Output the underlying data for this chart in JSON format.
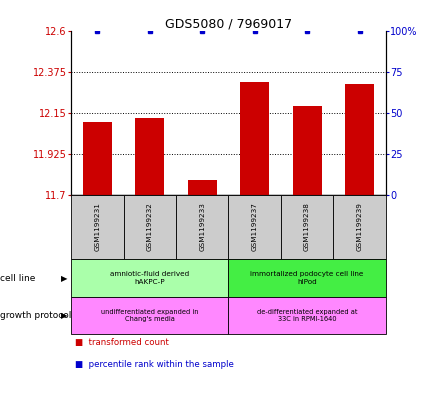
{
  "title": "GDS5080 / 7969017",
  "samples": [
    "GSM1199231",
    "GSM1199232",
    "GSM1199233",
    "GSM1199237",
    "GSM1199238",
    "GSM1199239"
  ],
  "bar_values": [
    12.1,
    12.12,
    11.78,
    12.32,
    12.19,
    12.31
  ],
  "percentile_values": [
    100,
    100,
    100,
    100,
    100,
    100
  ],
  "ylim_left": [
    11.7,
    12.6
  ],
  "ylim_right": [
    0,
    100
  ],
  "yticks_left": [
    11.7,
    11.925,
    12.15,
    12.375,
    12.6
  ],
  "ytick_labels_left": [
    "11.7",
    "11.925",
    "12.15",
    "12.375",
    "12.6"
  ],
  "yticks_right": [
    0,
    25,
    50,
    75,
    100
  ],
  "ytick_labels_right": [
    "0",
    "25",
    "50",
    "75",
    "100%"
  ],
  "bar_color": "#cc0000",
  "percentile_color": "#0000cc",
  "cell_line_groups": [
    {
      "label": "amniotic-fluid derived\nhAKPC-P",
      "start": 0,
      "end": 3,
      "color": "#aaffaa"
    },
    {
      "label": "immortalized podocyte cell line\nhIPod",
      "start": 3,
      "end": 6,
      "color": "#44ee44"
    }
  ],
  "growth_protocol_groups": [
    {
      "label": "undifferentiated expanded in\nChang's media",
      "start": 0,
      "end": 3,
      "color": "#ff88ff"
    },
    {
      "label": "de-differentiated expanded at\n33C in RPMI-1640",
      "start": 3,
      "end": 6,
      "color": "#ff88ff"
    }
  ],
  "sample_box_color": "#cccccc",
  "legend_items": [
    {
      "color": "#cc0000",
      "label": "transformed count"
    },
    {
      "color": "#0000cc",
      "label": "percentile rank within the sample"
    }
  ],
  "left_axis_color": "#cc0000",
  "right_axis_color": "#0000cc",
  "cell_line_label": "cell line",
  "growth_protocol_label": "growth protocol"
}
